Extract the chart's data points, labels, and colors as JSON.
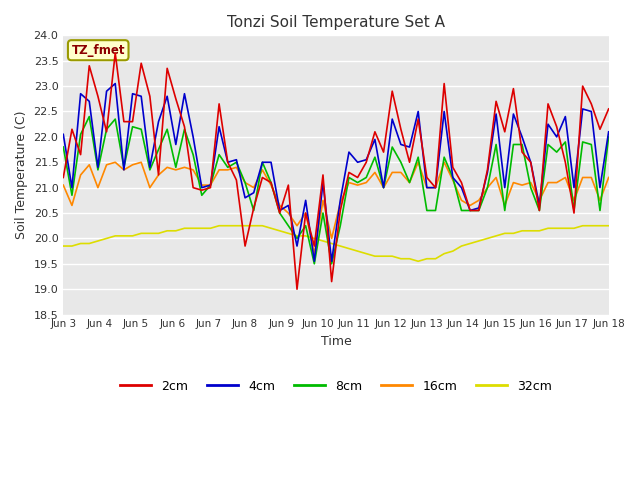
{
  "title": "Tonzi Soil Temperature Set A",
  "xlabel": "Time",
  "ylabel": "Soil Temperature (C)",
  "ylim": [
    18.5,
    24.0
  ],
  "fig_facecolor": "#ffffff",
  "plot_facecolor": "#e8e8e8",
  "legend_label": "TZ_fmet",
  "series_colors": {
    "2cm": "#dd0000",
    "4cm": "#0000cc",
    "8cm": "#00bb00",
    "16cm": "#ff8800",
    "32cm": "#dddd00"
  },
  "x_tick_labels": [
    "Jun 3",
    "Jun 4",
    "Jun 5",
    "Jun 6",
    "Jun 7",
    "Jun 8",
    "Jun 9",
    "Jun 10",
    "Jun 11",
    "Jun 12",
    "Jun 13",
    "Jun 14",
    "Jun 15",
    "Jun 16",
    "Jun 17",
    "Jun 18"
  ],
  "data_2cm": [
    21.2,
    22.15,
    21.65,
    23.4,
    22.8,
    22.1,
    23.65,
    22.3,
    22.3,
    23.45,
    22.8,
    21.25,
    23.35,
    22.75,
    22.2,
    21.0,
    20.95,
    21.0,
    22.65,
    21.5,
    21.15,
    19.85,
    20.6,
    21.2,
    21.1,
    20.5,
    21.05,
    19.0,
    20.5,
    19.85,
    21.25,
    19.15,
    20.55,
    21.3,
    21.2,
    21.5,
    22.1,
    21.7,
    22.9,
    22.15,
    21.5,
    22.35,
    21.2,
    21.0,
    23.05,
    21.4,
    21.1,
    20.55,
    20.55,
    21.35,
    22.7,
    22.1,
    22.95,
    21.7,
    21.5,
    20.55,
    22.65,
    22.2,
    21.5,
    20.5,
    23.0,
    22.65,
    22.15,
    22.55
  ],
  "data_4cm": [
    22.05,
    21.0,
    22.85,
    22.7,
    21.4,
    22.9,
    23.05,
    21.35,
    22.85,
    22.8,
    21.4,
    22.3,
    22.8,
    21.85,
    22.85,
    22.0,
    21.0,
    21.05,
    22.2,
    21.5,
    21.55,
    20.8,
    20.9,
    21.5,
    21.5,
    20.55,
    20.65,
    19.85,
    20.75,
    19.55,
    21.1,
    19.55,
    20.75,
    21.7,
    21.5,
    21.55,
    21.95,
    21.0,
    22.35,
    21.85,
    21.8,
    22.5,
    21.0,
    21.0,
    22.5,
    21.2,
    21.0,
    20.55,
    20.6,
    21.3,
    22.45,
    21.0,
    22.45,
    22.0,
    21.5,
    20.65,
    22.25,
    22.0,
    22.4,
    21.0,
    22.55,
    22.5,
    21.0,
    22.1
  ],
  "data_8cm": [
    21.8,
    20.85,
    22.05,
    22.4,
    21.35,
    22.15,
    22.35,
    21.4,
    22.2,
    22.15,
    21.35,
    21.75,
    22.15,
    21.4,
    22.15,
    21.65,
    20.85,
    21.05,
    21.65,
    21.4,
    21.5,
    21.1,
    20.55,
    21.5,
    21.1,
    20.5,
    20.25,
    20.0,
    20.25,
    19.5,
    20.5,
    19.5,
    20.25,
    21.2,
    21.1,
    21.2,
    21.6,
    21.0,
    21.8,
    21.5,
    21.1,
    21.6,
    20.55,
    20.55,
    21.6,
    21.2,
    20.55,
    20.55,
    20.55,
    21.0,
    21.85,
    20.55,
    21.85,
    21.85,
    21.0,
    20.55,
    21.85,
    21.7,
    21.9,
    20.55,
    21.9,
    21.85,
    20.55,
    22.0
  ],
  "data_16cm": [
    21.05,
    20.65,
    21.25,
    21.45,
    21.0,
    21.45,
    21.5,
    21.35,
    21.45,
    21.5,
    21.0,
    21.25,
    21.4,
    21.35,
    21.4,
    21.35,
    21.05,
    21.05,
    21.35,
    21.35,
    21.4,
    21.1,
    21.0,
    21.35,
    21.05,
    20.65,
    20.5,
    20.25,
    20.5,
    19.7,
    20.75,
    20.0,
    20.7,
    21.1,
    21.05,
    21.1,
    21.3,
    21.0,
    21.3,
    21.3,
    21.1,
    21.5,
    21.0,
    21.0,
    21.5,
    21.15,
    20.75,
    20.65,
    20.75,
    21.0,
    21.2,
    20.65,
    21.1,
    21.05,
    21.1,
    20.75,
    21.1,
    21.1,
    21.2,
    20.75,
    21.2,
    21.2,
    20.75,
    21.2
  ],
  "data_32cm": [
    19.85,
    19.85,
    19.9,
    19.9,
    19.95,
    20.0,
    20.05,
    20.05,
    20.05,
    20.1,
    20.1,
    20.1,
    20.15,
    20.15,
    20.2,
    20.2,
    20.2,
    20.2,
    20.25,
    20.25,
    20.25,
    20.25,
    20.25,
    20.25,
    20.2,
    20.15,
    20.1,
    20.05,
    20.05,
    20.0,
    19.95,
    19.9,
    19.85,
    19.8,
    19.75,
    19.7,
    19.65,
    19.65,
    19.65,
    19.6,
    19.6,
    19.55,
    19.6,
    19.6,
    19.7,
    19.75,
    19.85,
    19.9,
    19.95,
    20.0,
    20.05,
    20.1,
    20.1,
    20.15,
    20.15,
    20.15,
    20.2,
    20.2,
    20.2,
    20.2,
    20.25,
    20.25,
    20.25,
    20.25
  ]
}
